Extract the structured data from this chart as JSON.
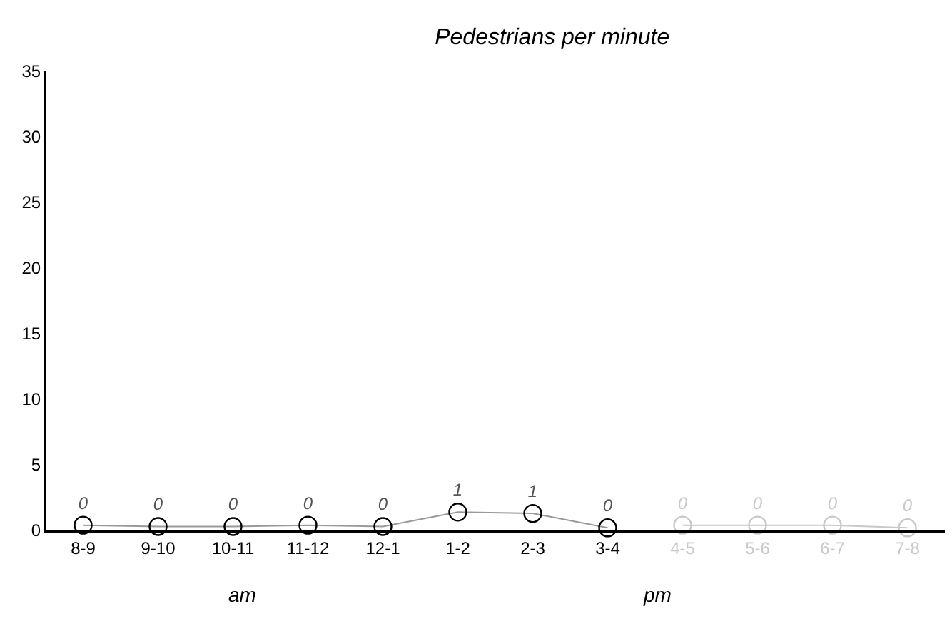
{
  "chart_data": {
    "type": "line",
    "title": "Pedestrians per minute",
    "categories": [
      "8-9",
      "9-10",
      "10-11",
      "11-12",
      "12-1",
      "1-2",
      "2-3",
      "3-4",
      "4-5",
      "5-6",
      "6-7",
      "7-8"
    ],
    "series": [
      {
        "color": "#000000",
        "values": [
          0.4,
          0.3,
          0.3,
          0.4,
          0.3,
          1.4,
          1.3,
          0.2,
          null,
          null,
          null,
          null
        ],
        "value_labels": [
          "0",
          "0",
          "0",
          "0",
          "0",
          "1",
          "1",
          "0",
          null,
          null,
          null,
          null
        ]
      },
      {
        "color": "#c8c8c8",
        "values": [
          null,
          null,
          null,
          null,
          null,
          null,
          null,
          null,
          0.4,
          0.4,
          0.4,
          0.2
        ],
        "value_labels": [
          null,
          null,
          null,
          null,
          null,
          null,
          null,
          null,
          "0",
          "0",
          "0",
          "0"
        ]
      }
    ],
    "ylim": [
      0,
      35
    ],
    "yticks": [
      0,
      5,
      10,
      15,
      20,
      25,
      30,
      35
    ],
    "marker": "circle",
    "line_style": "solid",
    "annotations": [
      "am",
      "pm"
    ]
  }
}
